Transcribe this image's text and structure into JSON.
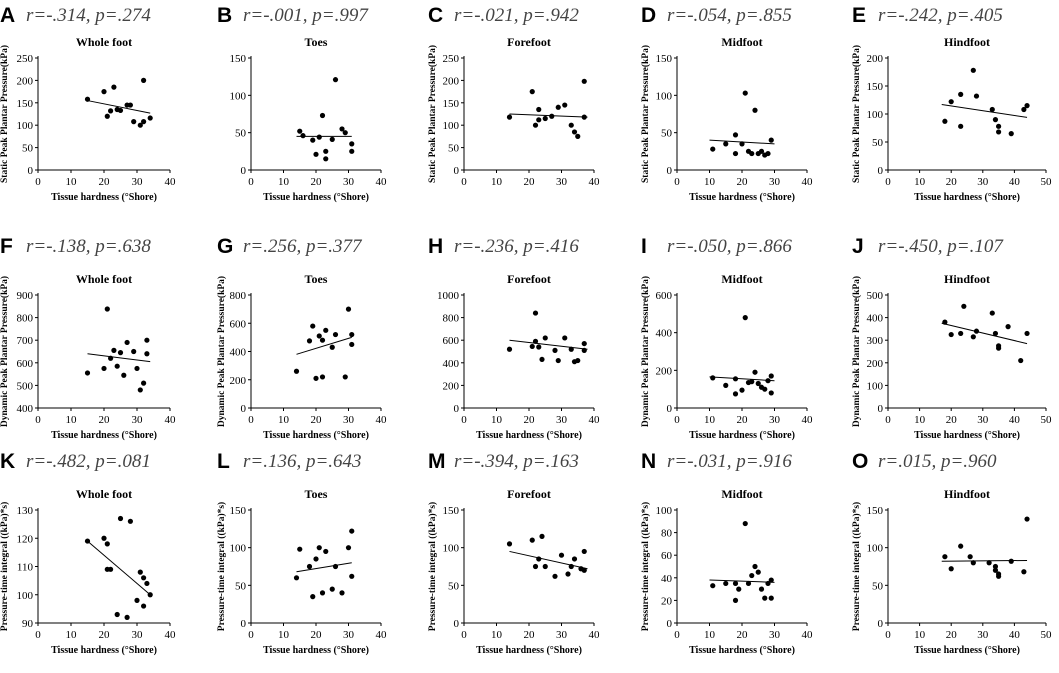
{
  "chart_data": [
    {
      "panel": "A",
      "stat": "r=-.314, p=.274",
      "title": "Whole foot",
      "type": "scatter",
      "xlabel": "Tissue hardness (°Shore)",
      "ylabel": "Static Peak Plantar Pressure(kPa)",
      "xlim": [
        0,
        40
      ],
      "xticks": [
        0,
        10,
        20,
        30,
        40
      ],
      "ylim": [
        0,
        250
      ],
      "yticks": [
        0,
        50,
        100,
        150,
        200,
        250
      ],
      "points": [
        [
          15,
          158
        ],
        [
          20,
          175
        ],
        [
          21,
          120
        ],
        [
          22,
          132
        ],
        [
          23,
          185
        ],
        [
          24,
          135
        ],
        [
          25,
          133
        ],
        [
          27,
          145
        ],
        [
          28,
          145
        ],
        [
          29,
          108
        ],
        [
          31,
          100
        ],
        [
          32,
          200
        ],
        [
          32,
          108
        ],
        [
          34,
          116
        ]
      ],
      "fit": [
        [
          15,
          155
        ],
        [
          34,
          127
        ]
      ]
    },
    {
      "panel": "B",
      "stat": "r=-.001, p=.997",
      "title": "Toes",
      "type": "scatter",
      "xlabel": "Tissue hardness (°Shore)",
      "ylabel": "",
      "xlim": [
        0,
        40
      ],
      "xticks": [
        0,
        10,
        20,
        30,
        40
      ],
      "ylim": [
        0,
        150
      ],
      "yticks": [
        0,
        50,
        100,
        150
      ],
      "points": [
        [
          15,
          52
        ],
        [
          16,
          46
        ],
        [
          19,
          40
        ],
        [
          20,
          21
        ],
        [
          21,
          44
        ],
        [
          22,
          73
        ],
        [
          23,
          25
        ],
        [
          23,
          15
        ],
        [
          25,
          41
        ],
        [
          26,
          121
        ],
        [
          28,
          55
        ],
        [
          29,
          50
        ],
        [
          31,
          35
        ],
        [
          31,
          25
        ]
      ],
      "fit": [
        [
          14,
          45
        ],
        [
          31,
          45
        ]
      ]
    },
    {
      "panel": "C",
      "stat": "r=-.021, p=.942",
      "title": "Forefoot",
      "type": "scatter",
      "xlabel": "",
      "ylabel": "Static Peak Plantar Pressure(kPa)",
      "xlim": [
        0,
        40
      ],
      "xticks": [
        0,
        10,
        20,
        30,
        40
      ],
      "ylim": [
        0,
        250
      ],
      "yticks": [
        0,
        50,
        100,
        150,
        200,
        250
      ],
      "points": [
        [
          14,
          118
        ],
        [
          21,
          175
        ],
        [
          22,
          100
        ],
        [
          23,
          135
        ],
        [
          23,
          112
        ],
        [
          25,
          115
        ],
        [
          27,
          120
        ],
        [
          29,
          140
        ],
        [
          31,
          145
        ],
        [
          33,
          100
        ],
        [
          34,
          85
        ],
        [
          35,
          75
        ],
        [
          37,
          198
        ],
        [
          37,
          118
        ]
      ],
      "fit": [
        [
          14,
          125
        ],
        [
          38,
          118
        ]
      ]
    },
    {
      "panel": "D",
      "stat": "r=-.054, p=.855",
      "title": "Midfoot",
      "type": "scatter",
      "xlabel": "Tissue hardness (°Shore)",
      "ylabel": "Static Peak Plantar Pressure(kPa)",
      "xlim": [
        0,
        40
      ],
      "xticks": [
        0,
        10,
        20,
        30,
        40
      ],
      "ylim": [
        0,
        150
      ],
      "yticks": [
        0,
        50,
        100,
        150
      ],
      "points": [
        [
          11,
          28
        ],
        [
          15,
          35
        ],
        [
          18,
          47
        ],
        [
          18,
          22
        ],
        [
          20,
          35
        ],
        [
          21,
          103
        ],
        [
          22,
          25
        ],
        [
          23,
          22
        ],
        [
          24,
          80
        ],
        [
          25,
          22
        ],
        [
          26,
          25
        ],
        [
          27,
          20
        ],
        [
          28,
          22
        ],
        [
          29,
          40
        ]
      ],
      "fit": [
        [
          10,
          40
        ],
        [
          30,
          35
        ]
      ]
    },
    {
      "panel": "E",
      "stat": "r=-.242, p=.405",
      "title": "Hindfoot",
      "type": "scatter",
      "xlabel": "Tissue hardness (°Shore)",
      "ylabel": "Static Peak Plantar Pressure(kPa)",
      "xlim": [
        0,
        50
      ],
      "xticks": [
        0,
        10,
        20,
        30,
        40,
        50
      ],
      "ylim": [
        0,
        200
      ],
      "yticks": [
        0,
        50,
        100,
        150,
        200
      ],
      "points": [
        [
          18,
          87
        ],
        [
          20,
          122
        ],
        [
          23,
          78
        ],
        [
          23,
          135
        ],
        [
          27,
          178
        ],
        [
          28,
          132
        ],
        [
          33,
          108
        ],
        [
          34,
          90
        ],
        [
          35,
          78
        ],
        [
          35,
          68
        ],
        [
          39,
          65
        ],
        [
          43,
          108
        ],
        [
          44,
          115
        ]
      ],
      "fit": [
        [
          17,
          117
        ],
        [
          44,
          94
        ]
      ]
    },
    {
      "panel": "F",
      "stat": "r=-.138, p=.638",
      "title": "Whole foot",
      "type": "scatter",
      "xlabel": "Tissue hardness (°Shore)",
      "ylabel": "Dynamic Peak Plantar Pressure(kPa)",
      "xlim": [
        0,
        40
      ],
      "xticks": [
        0,
        10,
        20,
        30,
        40
      ],
      "ylim": [
        400,
        900
      ],
      "yticks": [
        400,
        500,
        600,
        700,
        800,
        900
      ],
      "points": [
        [
          15,
          555
        ],
        [
          20,
          575
        ],
        [
          21,
          838
        ],
        [
          22,
          620
        ],
        [
          23,
          655
        ],
        [
          24,
          585
        ],
        [
          25,
          645
        ],
        [
          26,
          545
        ],
        [
          27,
          690
        ],
        [
          29,
          650
        ],
        [
          30,
          575
        ],
        [
          31,
          480
        ],
        [
          32,
          510
        ],
        [
          33,
          700
        ],
        [
          33,
          640
        ]
      ],
      "fit": [
        [
          15,
          640
        ],
        [
          34,
          605
        ]
      ]
    },
    {
      "panel": "G",
      "stat": "r=.256, p=.377",
      "title": "Toes",
      "type": "scatter",
      "xlabel": "Tissue hardness (°Shore)",
      "ylabel": "Dynamic Peak Plantar Pressure(kPa)",
      "xlim": [
        0,
        40
      ],
      "xticks": [
        0,
        10,
        20,
        30,
        40
      ],
      "ylim": [
        0,
        800
      ],
      "yticks": [
        0,
        200,
        400,
        600,
        800
      ],
      "points": [
        [
          14,
          260
        ],
        [
          18,
          475
        ],
        [
          19,
          580
        ],
        [
          20,
          210
        ],
        [
          21,
          510
        ],
        [
          22,
          480
        ],
        [
          22,
          220
        ],
        [
          23,
          550
        ],
        [
          25,
          430
        ],
        [
          26,
          520
        ],
        [
          29,
          220
        ],
        [
          30,
          700
        ],
        [
          31,
          520
        ],
        [
          31,
          450
        ]
      ],
      "fit": [
        [
          14,
          380
        ],
        [
          31,
          500
        ]
      ]
    },
    {
      "panel": "H",
      "stat": "r=-.236, p=.416",
      "title": "Forefoot",
      "type": "scatter",
      "xlabel": "Tissue hardness (°Shore)",
      "ylabel": "",
      "xlim": [
        0,
        40
      ],
      "xticks": [
        0,
        10,
        20,
        30,
        40
      ],
      "ylim": [
        0,
        1000
      ],
      "yticks": [
        0,
        200,
        400,
        600,
        800,
        1000
      ],
      "points": [
        [
          14,
          520
        ],
        [
          21,
          545
        ],
        [
          22,
          590
        ],
        [
          22,
          840
        ],
        [
          23,
          540
        ],
        [
          24,
          430
        ],
        [
          25,
          620
        ],
        [
          28,
          510
        ],
        [
          29,
          420
        ],
        [
          31,
          620
        ],
        [
          33,
          520
        ],
        [
          34,
          410
        ],
        [
          35,
          420
        ],
        [
          37,
          510
        ],
        [
          37,
          570
        ]
      ],
      "fit": [
        [
          14,
          600
        ],
        [
          38,
          520
        ]
      ]
    },
    {
      "panel": "I",
      "stat": "r=-.050, p=.866",
      "title": "Midfoot",
      "type": "scatter",
      "xlabel": "Tissue hardness (°Shore)",
      "ylabel": "Dynamic Peak Plantar Pressure(kPa)",
      "xlim": [
        0,
        40
      ],
      "xticks": [
        0,
        10,
        20,
        30,
        40
      ],
      "ylim": [
        0,
        600
      ],
      "yticks": [
        0,
        200,
        400,
        600
      ],
      "points": [
        [
          11,
          160
        ],
        [
          15,
          120
        ],
        [
          18,
          155
        ],
        [
          18,
          75
        ],
        [
          20,
          95
        ],
        [
          21,
          480
        ],
        [
          22,
          135
        ],
        [
          23,
          140
        ],
        [
          24,
          190
        ],
        [
          25,
          130
        ],
        [
          26,
          110
        ],
        [
          27,
          100
        ],
        [
          28,
          145
        ],
        [
          29,
          80
        ],
        [
          29,
          170
        ]
      ],
      "fit": [
        [
          10,
          165
        ],
        [
          30,
          145
        ]
      ]
    },
    {
      "panel": "J",
      "stat": "r=-.450, p=.107",
      "title": "Hindfoot",
      "type": "scatter",
      "xlabel": "Tissue hardness (°Shore)",
      "ylabel": "Dynamic Peak Plantar Pressure(kPa)",
      "xlim": [
        0,
        50
      ],
      "xticks": [
        0,
        10,
        20,
        30,
        40,
        50
      ],
      "ylim": [
        0,
        500
      ],
      "yticks": [
        0,
        100,
        200,
        300,
        400,
        500
      ],
      "points": [
        [
          18,
          380
        ],
        [
          20,
          325
        ],
        [
          23,
          330
        ],
        [
          24,
          450
        ],
        [
          27,
          315
        ],
        [
          28,
          340
        ],
        [
          33,
          420
        ],
        [
          34,
          330
        ],
        [
          35,
          275
        ],
        [
          35,
          265
        ],
        [
          38,
          360
        ],
        [
          42,
          210
        ],
        [
          44,
          330
        ]
      ],
      "fit": [
        [
          17,
          375
        ],
        [
          44,
          285
        ]
      ]
    },
    {
      "panel": "K",
      "stat": "r=-.482, p=.081",
      "title": "Whole foot",
      "type": "scatter",
      "xlabel": "Tissue hardness (°Shore)",
      "ylabel": "Pressure-time integral ((kPa)*s)",
      "xlim": [
        0,
        40
      ],
      "xticks": [
        0,
        10,
        20,
        30,
        40
      ],
      "ylim": [
        90,
        130
      ],
      "yticks": [
        90,
        100,
        110,
        120,
        130
      ],
      "points": [
        [
          15,
          119
        ],
        [
          20,
          120
        ],
        [
          21,
          118
        ],
        [
          21,
          109
        ],
        [
          22,
          109
        ],
        [
          24,
          93
        ],
        [
          25,
          127
        ],
        [
          27,
          92
        ],
        [
          28,
          126
        ],
        [
          30,
          98
        ],
        [
          31,
          108
        ],
        [
          32,
          106
        ],
        [
          32,
          96
        ],
        [
          33,
          104
        ],
        [
          34,
          100
        ]
      ],
      "fit": [
        [
          15,
          119
        ],
        [
          34,
          100
        ]
      ]
    },
    {
      "panel": "L",
      "stat": "r=.136, p=.643",
      "title": "Toes",
      "type": "scatter",
      "xlabel": "Tissue hardness (°Shore)",
      "ylabel": "Pressure-time integral ((kPa)*s)",
      "xlim": [
        0,
        40
      ],
      "xticks": [
        0,
        10,
        20,
        30,
        40
      ],
      "ylim": [
        0,
        150
      ],
      "yticks": [
        0,
        50,
        100,
        150
      ],
      "points": [
        [
          14,
          60
        ],
        [
          15,
          98
        ],
        [
          18,
          75
        ],
        [
          19,
          35
        ],
        [
          20,
          85
        ],
        [
          21,
          100
        ],
        [
          22,
          40
        ],
        [
          23,
          95
        ],
        [
          25,
          45
        ],
        [
          26,
          75
        ],
        [
          28,
          40
        ],
        [
          30,
          100
        ],
        [
          31,
          122
        ],
        [
          31,
          62
        ]
      ],
      "fit": [
        [
          14,
          68
        ],
        [
          31,
          80
        ]
      ]
    },
    {
      "panel": "M",
      "stat": "r=-.394, p=.163",
      "title": "Forefoot",
      "type": "scatter",
      "xlabel": "Tissue hardness (°Shore)",
      "ylabel": "Pressure-time integral ((kPa)*s)",
      "xlim": [
        0,
        40
      ],
      "xticks": [
        0,
        10,
        20,
        30,
        40
      ],
      "ylim": [
        0,
        150
      ],
      "yticks": [
        0,
        50,
        100,
        150
      ],
      "points": [
        [
          14,
          105
        ],
        [
          21,
          110
        ],
        [
          22,
          75
        ],
        [
          23,
          85
        ],
        [
          24,
          115
        ],
        [
          25,
          75
        ],
        [
          28,
          62
        ],
        [
          30,
          90
        ],
        [
          32,
          65
        ],
        [
          33,
          75
        ],
        [
          34,
          85
        ],
        [
          36,
          72
        ],
        [
          37,
          95
        ],
        [
          37,
          70
        ]
      ],
      "fit": [
        [
          14,
          95
        ],
        [
          38,
          72
        ]
      ]
    },
    {
      "panel": "N",
      "stat": "r=-.031, p=.916",
      "title": "Midfoot",
      "type": "scatter",
      "xlabel": "Tissue hardness (°Shore)",
      "ylabel": "Pressure-time integral ((kPa)*s)",
      "xlim": [
        0,
        40
      ],
      "xticks": [
        0,
        10,
        20,
        30,
        40
      ],
      "ylim": [
        0,
        100
      ],
      "yticks": [
        0,
        20,
        40,
        60,
        80,
        100
      ],
      "points": [
        [
          11,
          33
        ],
        [
          15,
          35
        ],
        [
          18,
          35
        ],
        [
          18,
          20
        ],
        [
          19,
          30
        ],
        [
          21,
          88
        ],
        [
          22,
          35
        ],
        [
          23,
          42
        ],
        [
          24,
          50
        ],
        [
          25,
          45
        ],
        [
          26,
          30
        ],
        [
          27,
          22
        ],
        [
          28,
          35
        ],
        [
          29,
          22
        ],
        [
          29,
          38
        ]
      ],
      "fit": [
        [
          10,
          38
        ],
        [
          30,
          36
        ]
      ]
    },
    {
      "panel": "O",
      "stat": "r=.015, p=.960",
      "title": "Hindfoot",
      "type": "scatter",
      "xlabel": "Tissue hardness (°Shore)",
      "ylabel": "Pressure-time integral ((kPa)*s)",
      "xlim": [
        0,
        50
      ],
      "xticks": [
        0,
        10,
        20,
        30,
        40,
        50
      ],
      "ylim": [
        0,
        150
      ],
      "yticks": [
        0,
        50,
        100,
        150
      ],
      "points": [
        [
          18,
          88
        ],
        [
          20,
          72
        ],
        [
          23,
          102
        ],
        [
          26,
          88
        ],
        [
          27,
          80
        ],
        [
          32,
          80
        ],
        [
          34,
          75
        ],
        [
          34,
          70
        ],
        [
          35,
          62
        ],
        [
          35,
          65
        ],
        [
          39,
          82
        ],
        [
          43,
          68
        ],
        [
          44,
          138
        ]
      ],
      "fit": [
        [
          17,
          82
        ],
        [
          44,
          83
        ]
      ]
    }
  ]
}
